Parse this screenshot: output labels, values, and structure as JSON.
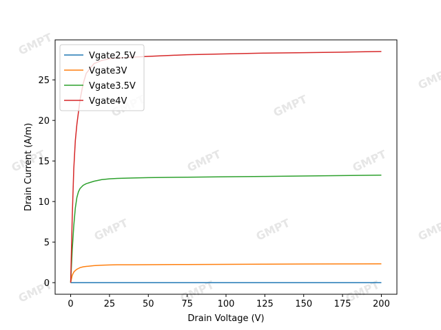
{
  "chart_data": {
    "type": "line",
    "watermark": "GMPT",
    "x_label": "Drain Voltage (V)",
    "y_label": "Drain Current (A/m)",
    "x": [
      0,
      1,
      2,
      3,
      4,
      5,
      6,
      8,
      10,
      15,
      20,
      25,
      30,
      40,
      50,
      75,
      100,
      125,
      150,
      175,
      200
    ],
    "series": [
      {
        "name": "Vgate2.5V",
        "color": "#1f77b4",
        "values": [
          0,
          0,
          0,
          0,
          0,
          0,
          0,
          0,
          0,
          0,
          0,
          0,
          0,
          0,
          0,
          0,
          0,
          0,
          0,
          0,
          0
        ]
      },
      {
        "name": "Vgate3V",
        "color": "#ff7f0e",
        "values": [
          0,
          0.9,
          1.3,
          1.5,
          1.65,
          1.75,
          1.85,
          1.95,
          2.0,
          2.1,
          2.15,
          2.18,
          2.2,
          2.2,
          2.22,
          2.24,
          2.26,
          2.28,
          2.3,
          2.31,
          2.32
        ]
      },
      {
        "name": "Vgate3.5V",
        "color": "#2ca02c",
        "values": [
          0,
          4,
          7,
          9.2,
          10.5,
          11.2,
          11.6,
          12.0,
          12.2,
          12.5,
          12.7,
          12.8,
          12.85,
          12.9,
          12.95,
          13.0,
          13.05,
          13.1,
          13.15,
          13.2,
          13.25
        ]
      },
      {
        "name": "Vgate4V",
        "color": "#d62728",
        "values": [
          0,
          8,
          14,
          17.5,
          19.5,
          21,
          22.5,
          24.5,
          25.8,
          27.0,
          27.4,
          27.6,
          27.7,
          27.8,
          27.9,
          28.1,
          28.2,
          28.3,
          28.35,
          28.42,
          28.5
        ]
      }
    ],
    "xlim": [
      -10,
      210
    ],
    "ylim": [
      -1.43,
      29.93
    ],
    "xticks": [
      0,
      25,
      50,
      75,
      100,
      125,
      150,
      175,
      200
    ],
    "yticks": [
      0,
      5,
      10,
      15,
      20,
      25
    ],
    "legend": "upper left"
  }
}
